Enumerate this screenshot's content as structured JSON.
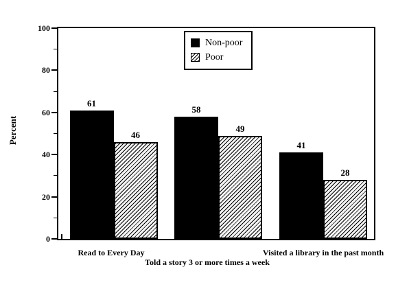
{
  "chart_data": {
    "type": "bar",
    "title": "",
    "ylabel": "Percent",
    "xlabel": "",
    "ylim": [
      0,
      100
    ],
    "yticks": [
      0,
      20,
      40,
      60,
      80,
      100
    ],
    "yticks_minor": [
      10,
      30,
      50,
      70,
      90
    ],
    "categories": [
      "Read to Every Day",
      "Told a story 3 or more times a week",
      "Visited a library in the past month"
    ],
    "series": [
      {
        "name": "Non-poor",
        "values": [
          61,
          58,
          41
        ],
        "fill": "solid-black"
      },
      {
        "name": "Poor",
        "values": [
          46,
          49,
          28
        ],
        "fill": "diagonal-hatch"
      }
    ],
    "value_labels_shown": true,
    "grid": false,
    "legend": {
      "position": "top-right-inside",
      "entries": [
        "Non-poor",
        "Poor"
      ]
    },
    "colors": {
      "bar_solid": "#000000",
      "hatch_line": "#000000",
      "background": "#ffffff",
      "axis": "#000000",
      "text": "#000000"
    }
  }
}
